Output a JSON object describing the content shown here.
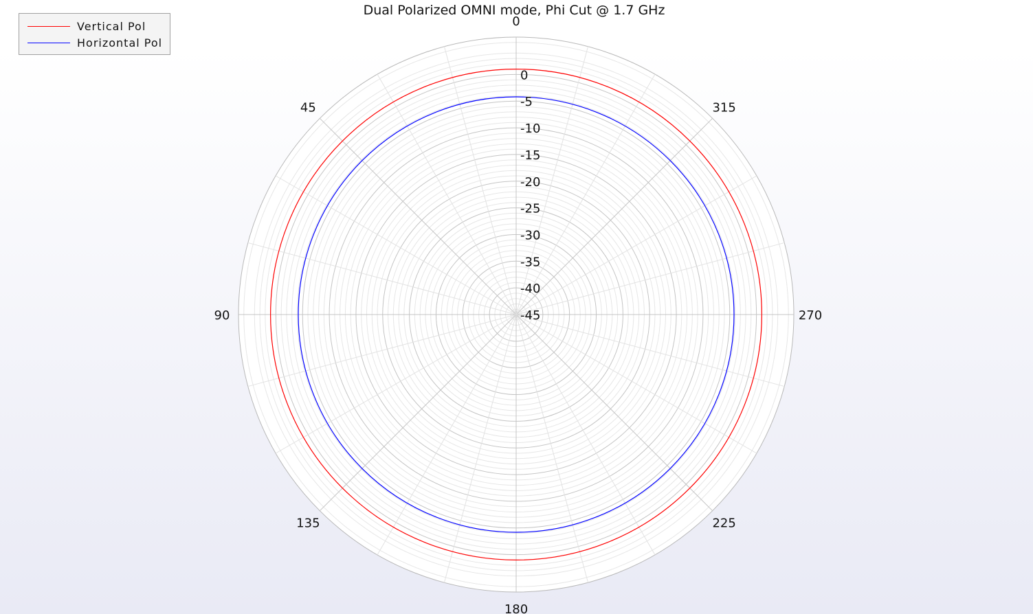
{
  "chart_data": {
    "type": "polar",
    "title": "Dual Polarized OMNI mode, Phi Cut @ 1.7 GHz",
    "angle_direction": "counterclockwise",
    "angle_zero_location": "top",
    "angle_tick_labels": [
      "0",
      "45",
      "90",
      "135",
      "180",
      "225",
      "270",
      "315"
    ],
    "radial_range": [
      -45,
      7
    ],
    "radial_tick_values": [
      0,
      -5,
      -10,
      -15,
      -20,
      -25,
      -30,
      -35,
      -40,
      -45
    ],
    "radial_tick_labels": [
      "0",
      "-5",
      "-10",
      "-15",
      "-20",
      "-25",
      "-30",
      "-35",
      "-40",
      "-45"
    ],
    "grid": true,
    "legend_position": "top-left",
    "series": [
      {
        "name": "Vertical Pol",
        "color": "#ff0000",
        "values_deg": [
          0,
          360
        ],
        "value_db": 1.0
      },
      {
        "name": "Horizontal Pol",
        "color": "#0000ff",
        "values_deg": [
          0,
          360
        ],
        "value_db": -4.2
      }
    ]
  }
}
